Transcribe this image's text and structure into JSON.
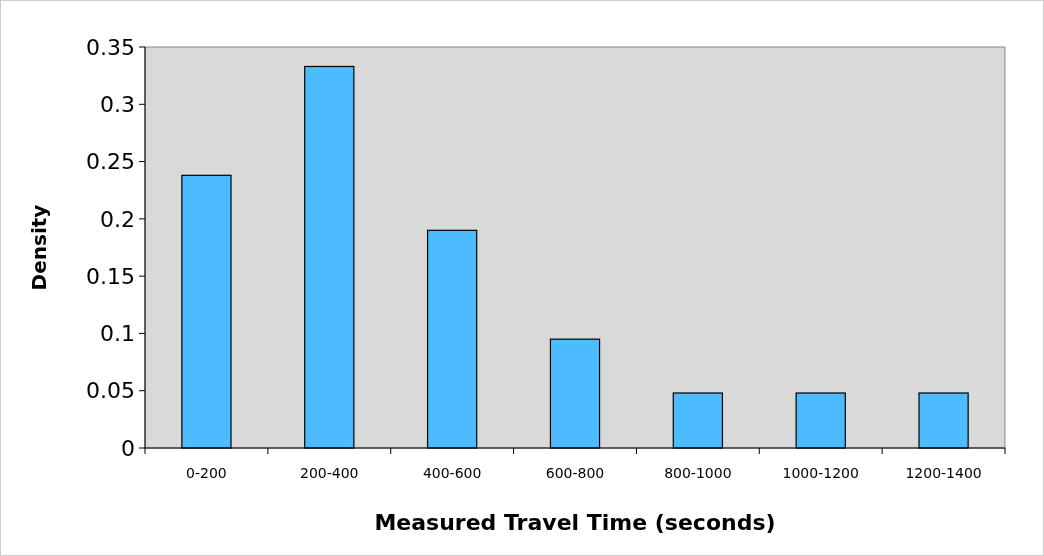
{
  "chart_data": {
    "type": "bar",
    "xlabel": "Measured Travel Time (seconds)",
    "ylabel": "Density",
    "categories": [
      "0-200",
      "200-400",
      "400-600",
      "600-800",
      "800-1000",
      "1000-1200",
      "1200-1400"
    ],
    "values": [
      0.238,
      0.333,
      0.19,
      0.095,
      0.048,
      0.048,
      0.048
    ],
    "color": "#4dbbff",
    "ylim": [
      0,
      0.35
    ],
    "yticks": [
      0,
      0.05,
      0.1,
      0.15,
      0.2,
      0.25,
      0.3,
      0.35
    ],
    "grid": false
  }
}
